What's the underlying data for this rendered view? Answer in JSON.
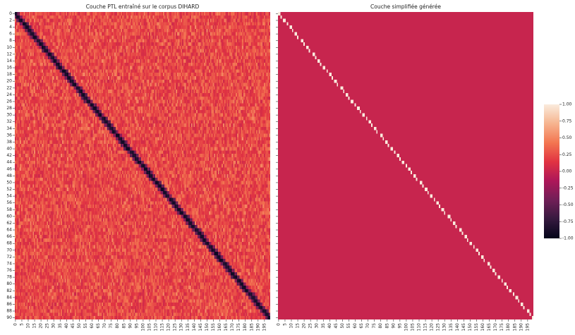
{
  "chart_data": [
    {
      "type": "heatmap",
      "title": "Couche PTL entraîné sur le corpus DIHARD",
      "rows": 91,
      "cols": 200,
      "x_ticks": [
        "0",
        "5",
        "10",
        "15",
        "20",
        "25",
        "30",
        "35",
        "40",
        "45",
        "50",
        "55",
        "60",
        "65",
        "70",
        "75",
        "80",
        "85",
        "90",
        "95",
        "100",
        "105",
        "110",
        "115",
        "120",
        "125",
        "130",
        "135",
        "140",
        "145",
        "150",
        "155",
        "160",
        "165",
        "170",
        "175",
        "180",
        "185",
        "190",
        "195"
      ],
      "y_ticks": [
        "0",
        "2",
        "4",
        "6",
        "8",
        "10",
        "12",
        "14",
        "16",
        "18",
        "20",
        "22",
        "24",
        "26",
        "28",
        "30",
        "32",
        "34",
        "36",
        "38",
        "40",
        "42",
        "44",
        "46",
        "48",
        "50",
        "52",
        "54",
        "56",
        "58",
        "60",
        "62",
        "64",
        "66",
        "68",
        "70",
        "72",
        "74",
        "76",
        "78",
        "80",
        "82",
        "84",
        "86",
        "88",
        "90"
      ],
      "background_value_range": [
        -0.1,
        0.55
      ],
      "diagonal_value": -0.95
    },
    {
      "type": "heatmap",
      "title": "Couche simplifiée générée",
      "rows": 91,
      "cols": 200,
      "x_ticks": [
        "0",
        "5",
        "10",
        "15",
        "20",
        "25",
        "30",
        "35",
        "40",
        "45",
        "50",
        "55",
        "60",
        "65",
        "70",
        "75",
        "80",
        "85",
        "90",
        "95",
        "100",
        "105",
        "110",
        "115",
        "120",
        "125",
        "130",
        "135",
        "140",
        "145",
        "150",
        "155",
        "160",
        "165",
        "170",
        "175",
        "180",
        "185",
        "190",
        "195"
      ],
      "background_value": 0.0,
      "diagonal_value": 1.0
    }
  ],
  "colorbar": {
    "vmin": -1.0,
    "vmax": 1.0,
    "tick_labels": [
      "-1.00",
      "-0.75",
      "-0.50",
      "-0.25",
      "0.00",
      "0.25",
      "0.50",
      "0.75",
      "1.00"
    ],
    "colormap": "rocket",
    "stops": [
      "#03051a",
      "#35193e",
      "#701f57",
      "#ad1759",
      "#e13342",
      "#f37651",
      "#f6b48f",
      "#faebdd"
    ]
  }
}
